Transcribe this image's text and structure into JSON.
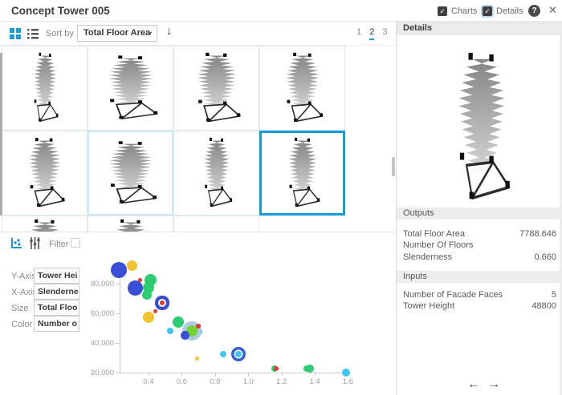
{
  "title_bar": {
    "title": "Concept Tower 005",
    "charts_label": "Charts",
    "details_label": "Details",
    "charts_checked": true,
    "details_checked": true
  },
  "icons": {
    "help": "?",
    "close": "✕",
    "check": "✓",
    "caret_down": "▾",
    "sort_descending": "↓",
    "prev_arrow": "←",
    "next_arrow": "→"
  },
  "toolbar": {
    "sort_by_label": "Sort by",
    "sort_value": "Total Floor Area",
    "pages": [
      "1",
      "2",
      "3"
    ],
    "active_page": "2"
  },
  "grid": {
    "columns": 4,
    "visible_rows": 2,
    "selected_thumbnail_index": 8,
    "highlighted_thumbnail_index": 6
  },
  "chart_panel": {
    "filter_label": "Filter",
    "filter_checked": false,
    "controls": [
      {
        "label": "Y-Axis",
        "value": "Tower Hei"
      },
      {
        "label": "X-Axis",
        "value": "Slenderne"
      },
      {
        "label": "Size",
        "value": "Total Floo"
      },
      {
        "label": "Color",
        "value": "Number o"
      }
    ]
  },
  "chart_data": {
    "type": "scatter",
    "xlabel": "Slenderness",
    "ylabel": "Tower Height",
    "size_dimension": "Total Floor Area",
    "color_dimension": "Number Of Floors",
    "xlim": [
      0.2,
      1.65
    ],
    "ylim": [
      20000,
      93000
    ],
    "grid": false,
    "x_ticks": [
      {
        "value": 0.4,
        "label": "0.4"
      },
      {
        "value": 0.6,
        "label": "0.6"
      },
      {
        "value": 0.8,
        "label": "0.8"
      },
      {
        "value": 1.0,
        "label": "1.0"
      },
      {
        "value": 1.2,
        "label": "1.2"
      },
      {
        "value": 1.4,
        "label": "1.4"
      },
      {
        "value": 1.6,
        "label": "1.6"
      }
    ],
    "y_ticks": [
      {
        "value": 20000,
        "label": "20,000"
      },
      {
        "value": 40000,
        "label": "40,000"
      },
      {
        "value": 60000,
        "label": "60,000"
      },
      {
        "value": 80000,
        "label": "80,000"
      }
    ],
    "colors": {
      "blue": "#3b4fd6",
      "green": "#2bcd6e",
      "yellow": "#f0c42f",
      "red": "#e23a30",
      "cyan": "#3ec6f2",
      "lightgreen": "#74d32e"
    },
    "ring_colors": {
      "blue": "#3b4fd6",
      "blue2": "#3a5fd0",
      "lightblue": "#abcbe9"
    },
    "points": [
      {
        "x": 0.22,
        "y": 89200,
        "r": 10,
        "color": "blue"
      },
      {
        "x": 0.3,
        "y": 92400,
        "r": 6.5,
        "color": "yellow"
      },
      {
        "x": 0.35,
        "y": 82700,
        "r": 2.5,
        "color": "red"
      },
      {
        "x": 0.41,
        "y": 82200,
        "r": 7.5,
        "color": "green"
      },
      {
        "x": 0.32,
        "y": 76800,
        "r": 9.5,
        "color": "blue"
      },
      {
        "x": 0.4,
        "y": 77300,
        "r": 7,
        "color": "green"
      },
      {
        "x": 0.39,
        "y": 72400,
        "r": 6,
        "color": "green"
      },
      {
        "x": 0.48,
        "y": 67000,
        "r": 3,
        "color": "red",
        "ring": "blue"
      },
      {
        "x": 0.44,
        "y": 61100,
        "r": 2.5,
        "color": "red"
      },
      {
        "x": 0.4,
        "y": 57300,
        "r": 7,
        "color": "yellow"
      },
      {
        "x": 0.58,
        "y": 54100,
        "r": 7,
        "color": "green"
      },
      {
        "x": 0.53,
        "y": 48100,
        "r": 4,
        "color": "cyan"
      },
      {
        "x": 0.7,
        "y": 47600,
        "r": 5,
        "color": "cyan"
      },
      {
        "x": 0.66,
        "y": 48100,
        "r": 7,
        "color": "lightgreen",
        "ring": "lightblue"
      },
      {
        "x": 0.7,
        "y": 51400,
        "r": 2.7,
        "color": "red"
      },
      {
        "x": 0.62,
        "y": 44900,
        "r": 5.5,
        "color": "blue"
      },
      {
        "x": 0.85,
        "y": 32400,
        "r": 4,
        "color": "cyan"
      },
      {
        "x": 0.94,
        "y": 32400,
        "r": 4,
        "color": "cyan",
        "ring": "blue2"
      },
      {
        "x": 0.69,
        "y": 29700,
        "r": 2.5,
        "color": "yellow"
      },
      {
        "x": 1.16,
        "y": 22700,
        "r": 4,
        "color": "green"
      },
      {
        "x": 1.17,
        "y": 22700,
        "r": 3,
        "color": "red"
      },
      {
        "x": 1.35,
        "y": 22700,
        "r": 4,
        "color": "green"
      },
      {
        "x": 1.37,
        "y": 22700,
        "r": 5,
        "color": "green"
      },
      {
        "x": 1.59,
        "y": 20000,
        "r": 5,
        "color": "cyan"
      }
    ]
  },
  "details_panel": {
    "header": "Details",
    "outputs_header": "Outputs",
    "outputs": [
      {
        "label": "Total Floor Area",
        "value": "7788.646"
      },
      {
        "label": "Number Of Floors",
        "value": ""
      },
      {
        "label": "Slenderness",
        "value": "0.660"
      }
    ],
    "inputs_header": "Inputs",
    "inputs": [
      {
        "label": "Number of Facade Faces",
        "value": "5"
      },
      {
        "label": "Tower Height",
        "value": "48800"
      }
    ]
  }
}
